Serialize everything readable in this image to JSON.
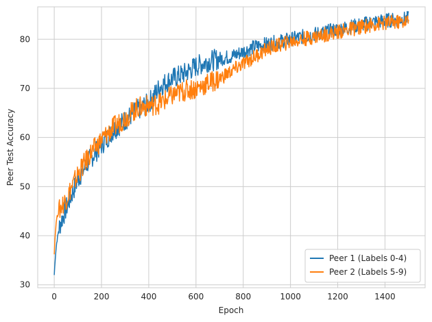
{
  "chart_data": {
    "type": "line",
    "title": "",
    "xlabel": "Epoch",
    "ylabel": "Peer Test Accuracy",
    "xlim": [
      -70,
      1570
    ],
    "ylim": [
      29.4,
      86.6
    ],
    "xticks": [
      0,
      200,
      400,
      600,
      800,
      1000,
      1200,
      1400
    ],
    "yticks": [
      30,
      40,
      50,
      60,
      70,
      80
    ],
    "grid": true,
    "legend_position": "lower right",
    "series": [
      {
        "name": "Peer 1 (Labels 0-4)",
        "color": "#1f77b4",
        "x": [
          0,
          5,
          10,
          20,
          30,
          50,
          75,
          100,
          150,
          200,
          250,
          300,
          350,
          400,
          450,
          500,
          550,
          600,
          650,
          700,
          750,
          800,
          850,
          900,
          950,
          1000,
          1050,
          1100,
          1150,
          1200,
          1250,
          1300,
          1350,
          1400,
          1450,
          1500
        ],
        "values": [
          32.0,
          36.0,
          38.5,
          41.5,
          43.0,
          45.5,
          48.5,
          51.5,
          55.5,
          58.5,
          61.5,
          63.5,
          65.5,
          67.0,
          70.5,
          72.0,
          73.0,
          74.5,
          75.5,
          76.0,
          76.5,
          77.5,
          78.5,
          79.0,
          79.5,
          80.0,
          80.5,
          81.0,
          81.5,
          82.0,
          82.5,
          83.0,
          83.5,
          83.8,
          84.0,
          84.2
        ]
      },
      {
        "name": "Peer 2 (Labels 5-9)",
        "color": "#ff7f0e",
        "x": [
          0,
          5,
          10,
          20,
          30,
          50,
          75,
          100,
          150,
          200,
          250,
          300,
          350,
          400,
          450,
          500,
          550,
          600,
          650,
          700,
          750,
          800,
          850,
          900,
          950,
          1000,
          1050,
          1100,
          1150,
          1200,
          1250,
          1300,
          1350,
          1400,
          1450,
          1500
        ],
        "values": [
          36.5,
          41.0,
          43.5,
          45.0,
          46.0,
          47.5,
          50.0,
          52.5,
          56.5,
          59.5,
          62.0,
          64.0,
          66.0,
          66.5,
          67.0,
          68.5,
          69.5,
          70.0,
          71.0,
          72.0,
          73.5,
          75.0,
          76.5,
          78.0,
          78.8,
          79.5,
          80.0,
          80.5,
          81.0,
          81.5,
          82.0,
          82.5,
          83.0,
          83.3,
          83.5,
          83.7
        ]
      }
    ]
  }
}
